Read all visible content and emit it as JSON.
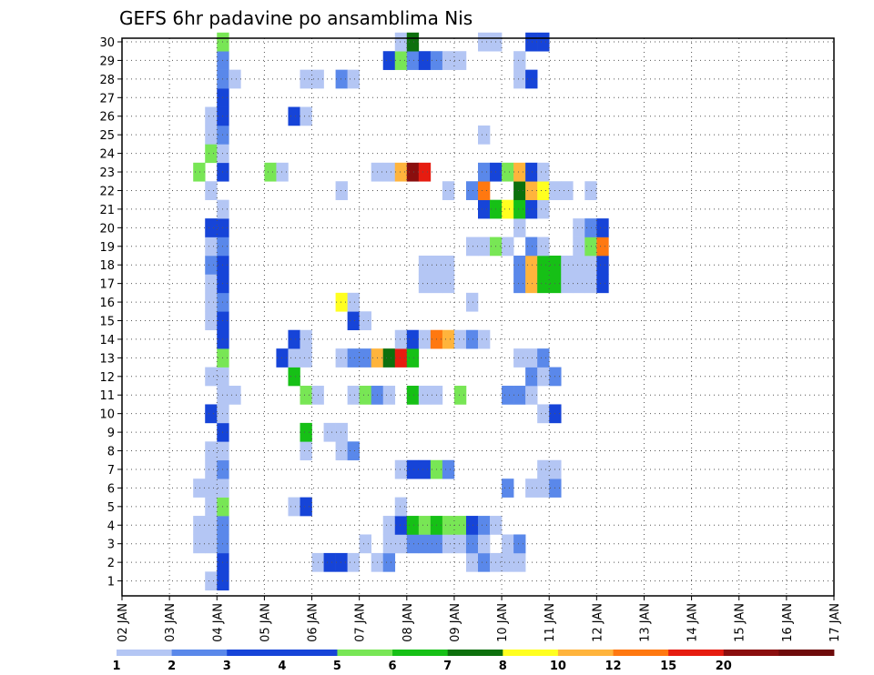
{
  "chart_data": {
    "type": "heatmap",
    "title": "GEFS 6hr padavine po ansamblima Nis",
    "xlabel": "",
    "ylabel": "",
    "x_ticks": [
      "02 JAN",
      "03 JAN",
      "04 JAN",
      "05 JAN",
      "06 JAN",
      "07 JAN",
      "08 JAN",
      "09 JAN",
      "10 JAN",
      "11 JAN",
      "12 JAN",
      "13 JAN",
      "14 JAN",
      "15 JAN",
      "16 JAN",
      "17 JAN"
    ],
    "y_ticks": [
      "1",
      "2",
      "3",
      "4",
      "5",
      "6",
      "7",
      "8",
      "9",
      "10",
      "11",
      "12",
      "13",
      "14",
      "15",
      "16",
      "17",
      "18",
      "19",
      "20",
      "21",
      "22",
      "23",
      "24",
      "25",
      "26",
      "27",
      "28",
      "29",
      "30"
    ],
    "grid": true,
    "colorbar": {
      "labels": [
        "1",
        "2",
        "3",
        "4",
        "5",
        "6",
        "7",
        "8",
        "10",
        "12",
        "15",
        "20"
      ],
      "colors": [
        "#b4c6f4",
        "#5a88ea",
        "#1644d8",
        "#1644d8",
        "#78e655",
        "#16c016",
        "#0d700d",
        "#ffff20",
        "#ffb43c",
        "#ff7810",
        "#e61c10",
        "#8a0e0e",
        "#6e0a0a"
      ]
    },
    "x_start": "02 JAN 00Z",
    "step_hours": 6,
    "members": {
      "1": [
        [
          7,
          1
        ],
        [
          8,
          3
        ]
      ],
      "2": [
        [
          8,
          3
        ],
        [
          16,
          1
        ],
        [
          17,
          3
        ],
        [
          18,
          3
        ],
        [
          19,
          1
        ],
        [
          21,
          1
        ],
        [
          22,
          2
        ],
        [
          29,
          1
        ],
        [
          30,
          2
        ],
        [
          31,
          1
        ],
        [
          32,
          1
        ],
        [
          33,
          1
        ]
      ],
      "3": [
        [
          6,
          1
        ],
        [
          7,
          1
        ],
        [
          8,
          2
        ],
        [
          20,
          1
        ],
        [
          22,
          1
        ],
        [
          23,
          1
        ],
        [
          24,
          2
        ],
        [
          25,
          2
        ],
        [
          26,
          2
        ],
        [
          27,
          1
        ],
        [
          28,
          1
        ],
        [
          29,
          2
        ],
        [
          30,
          1
        ],
        [
          32,
          1
        ],
        [
          33,
          2
        ]
      ],
      "4": [
        [
          6,
          1
        ],
        [
          7,
          1
        ],
        [
          8,
          2
        ],
        [
          22,
          1
        ],
        [
          23,
          3
        ],
        [
          24,
          6
        ],
        [
          25,
          5
        ],
        [
          26,
          6
        ],
        [
          27,
          5
        ],
        [
          28,
          5
        ],
        [
          29,
          3
        ],
        [
          30,
          2
        ],
        [
          31,
          1
        ]
      ],
      "5": [
        [
          7,
          1
        ],
        [
          8,
          5
        ],
        [
          14,
          1
        ],
        [
          15,
          3
        ],
        [
          23,
          1
        ]
      ],
      "6": [
        [
          6,
          1
        ],
        [
          7,
          1
        ],
        [
          8,
          1
        ],
        [
          32,
          2
        ],
        [
          34,
          1
        ],
        [
          35,
          1
        ],
        [
          36,
          2
        ]
      ],
      "7": [
        [
          7,
          1
        ],
        [
          8,
          2
        ],
        [
          23,
          1
        ],
        [
          24,
          3
        ],
        [
          25,
          3
        ],
        [
          26,
          5
        ],
        [
          27,
          2
        ],
        [
          35,
          1
        ],
        [
          36,
          1
        ]
      ],
      "8": [
        [
          7,
          1
        ],
        [
          8,
          1
        ],
        [
          15,
          1
        ],
        [
          18,
          1
        ],
        [
          19,
          2
        ]
      ],
      "9": [
        [
          8,
          3
        ],
        [
          15,
          6
        ],
        [
          17,
          1
        ],
        [
          18,
          1
        ]
      ],
      "10": [
        [
          7,
          3
        ],
        [
          8,
          1
        ],
        [
          35,
          1
        ],
        [
          36,
          3
        ]
      ],
      "11": [
        [
          8,
          1
        ],
        [
          9,
          1
        ],
        [
          15,
          5
        ],
        [
          16,
          1
        ],
        [
          19,
          1
        ],
        [
          20,
          5
        ],
        [
          21,
          2
        ],
        [
          22,
          1
        ],
        [
          24,
          6
        ],
        [
          25,
          1
        ],
        [
          26,
          1
        ],
        [
          28,
          5
        ],
        [
          32,
          2
        ],
        [
          33,
          2
        ],
        [
          34,
          1
        ]
      ],
      "12": [
        [
          7,
          1
        ],
        [
          8,
          1
        ],
        [
          14,
          6
        ],
        [
          34,
          2
        ],
        [
          35,
          1
        ],
        [
          36,
          2
        ]
      ],
      "13": [
        [
          8,
          5
        ],
        [
          13,
          3
        ],
        [
          14,
          1
        ],
        [
          15,
          1
        ],
        [
          18,
          1
        ],
        [
          19,
          2
        ],
        [
          20,
          2
        ],
        [
          21,
          9
        ],
        [
          22,
          7
        ],
        [
          23,
          11
        ],
        [
          24,
          6
        ],
        [
          33,
          1
        ],
        [
          34,
          1
        ],
        [
          35,
          2
        ]
      ],
      "14": [
        [
          8,
          3
        ],
        [
          14,
          3
        ],
        [
          15,
          1
        ],
        [
          23,
          1
        ],
        [
          24,
          3
        ],
        [
          25,
          1
        ],
        [
          26,
          10
        ],
        [
          27,
          9
        ],
        [
          28,
          1
        ],
        [
          29,
          2
        ],
        [
          30,
          1
        ]
      ],
      "15": [
        [
          7,
          1
        ],
        [
          8,
          3
        ],
        [
          19,
          3
        ],
        [
          20,
          1
        ]
      ],
      "16": [
        [
          7,
          1
        ],
        [
          8,
          2
        ],
        [
          18,
          8
        ],
        [
          19,
          1
        ],
        [
          29,
          1
        ]
      ],
      "17": [
        [
          7,
          1
        ],
        [
          8,
          3
        ],
        [
          25,
          1
        ],
        [
          26,
          1
        ],
        [
          27,
          1
        ],
        [
          33,
          2
        ],
        [
          34,
          9
        ],
        [
          35,
          6
        ],
        [
          36,
          6
        ],
        [
          37,
          1
        ],
        [
          38,
          1
        ],
        [
          39,
          1
        ],
        [
          40,
          3
        ]
      ],
      "18": [
        [
          7,
          2
        ],
        [
          8,
          3
        ],
        [
          25,
          1
        ],
        [
          26,
          1
        ],
        [
          27,
          1
        ],
        [
          33,
          2
        ],
        [
          34,
          9
        ],
        [
          35,
          6
        ],
        [
          36,
          6
        ],
        [
          37,
          1
        ],
        [
          38,
          1
        ],
        [
          39,
          1
        ],
        [
          40,
          3
        ]
      ],
      "19": [
        [
          7,
          1
        ],
        [
          8,
          2
        ],
        [
          29,
          1
        ],
        [
          30,
          1
        ],
        [
          31,
          5
        ],
        [
          32,
          1
        ],
        [
          34,
          2
        ],
        [
          35,
          1
        ],
        [
          38,
          1
        ],
        [
          39,
          5
        ],
        [
          40,
          10
        ]
      ],
      "20": [
        [
          7,
          3
        ],
        [
          8,
          3
        ],
        [
          33,
          1
        ],
        [
          38,
          1
        ],
        [
          39,
          2
        ],
        [
          40,
          3
        ]
      ],
      "21": [
        [
          8,
          1
        ],
        [
          30,
          3
        ],
        [
          31,
          6
        ],
        [
          32,
          8
        ],
        [
          33,
          6
        ],
        [
          34,
          3
        ],
        [
          35,
          1
        ]
      ],
      "22": [
        [
          7,
          1
        ],
        [
          18,
          1
        ],
        [
          27,
          1
        ],
        [
          29,
          2
        ],
        [
          30,
          10
        ],
        [
          33,
          7
        ],
        [
          34,
          9
        ],
        [
          35,
          8
        ],
        [
          36,
          1
        ],
        [
          37,
          1
        ],
        [
          39,
          1
        ]
      ],
      "23": [
        [
          6,
          5
        ],
        [
          8,
          3
        ],
        [
          12,
          5
        ],
        [
          13,
          1
        ],
        [
          21,
          1
        ],
        [
          22,
          1
        ],
        [
          23,
          9
        ],
        [
          24,
          12
        ],
        [
          25,
          11
        ],
        [
          30,
          2
        ],
        [
          31,
          3
        ],
        [
          32,
          5
        ],
        [
          33,
          9
        ],
        [
          34,
          3
        ],
        [
          35,
          1
        ]
      ],
      "24": [
        [
          7,
          5
        ],
        [
          8,
          1
        ]
      ],
      "25": [
        [
          7,
          1
        ],
        [
          8,
          2
        ],
        [
          30,
          1
        ]
      ],
      "26": [
        [
          7,
          1
        ],
        [
          8,
          3
        ],
        [
          14,
          3
        ],
        [
          15,
          1
        ]
      ],
      "27": [
        [
          8,
          3
        ]
      ],
      "28": [
        [
          8,
          2
        ],
        [
          9,
          1
        ],
        [
          15,
          1
        ],
        [
          16,
          1
        ],
        [
          18,
          2
        ],
        [
          19,
          1
        ],
        [
          33,
          1
        ],
        [
          34,
          3
        ]
      ],
      "29": [
        [
          8,
          2
        ],
        [
          22,
          3
        ],
        [
          23,
          5
        ],
        [
          24,
          2
        ],
        [
          25,
          3
        ],
        [
          26,
          2
        ],
        [
          27,
          1
        ],
        [
          28,
          1
        ],
        [
          33,
          1
        ]
      ],
      "30": [
        [
          8,
          5
        ],
        [
          23,
          1
        ],
        [
          24,
          7
        ],
        [
          30,
          1
        ],
        [
          31,
          1
        ],
        [
          34,
          3
        ],
        [
          35,
          3
        ]
      ]
    }
  }
}
